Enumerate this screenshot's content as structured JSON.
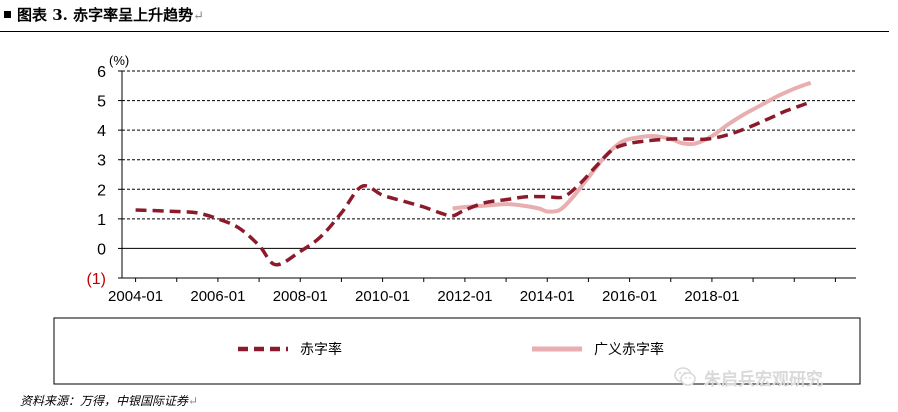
{
  "header": {
    "title": "图表 3. 赤字率呈上升趋势",
    "return_mark": "↵"
  },
  "footer": {
    "source": "资料来源：万得，中银国际证券",
    "return_mark": "↵",
    "watermark": "朱启兵宏观研究"
  },
  "icons": {
    "watermark_icon": "wechat-icon",
    "bullet": "square-bullet-icon"
  },
  "chart_data": {
    "type": "line",
    "unit_label": "(%)",
    "ylim": [
      -1,
      6
    ],
    "yticks": [
      6,
      5,
      4,
      3,
      2,
      1,
      0,
      -1
    ],
    "ytick_labels": [
      "6",
      "5",
      "4",
      "3",
      "2",
      "1",
      "0",
      "(1)"
    ],
    "negative_label_color": "#c00000",
    "xlim": [
      2003.67,
      2021.5
    ],
    "xticks": [
      2004,
      2006,
      2008,
      2010,
      2012,
      2014,
      2016,
      2018
    ],
    "xtick_labels": [
      "2004-01",
      "2006-01",
      "2008-01",
      "2010-01",
      "2012-01",
      "2014-01",
      "2016-01",
      "2018-01"
    ],
    "grid": "horizontal-dashed",
    "legend_position": "bottom",
    "series": [
      {
        "name": "赤字率",
        "color": "#8b1a2b",
        "style": "dashed",
        "points": [
          [
            2004.0,
            1.3
          ],
          [
            2005.0,
            1.25
          ],
          [
            2005.5,
            1.2
          ],
          [
            2006.0,
            1.0
          ],
          [
            2006.5,
            0.7
          ],
          [
            2007.0,
            0.1
          ],
          [
            2007.4,
            -0.55
          ],
          [
            2008.0,
            -0.1
          ],
          [
            2008.5,
            0.4
          ],
          [
            2009.0,
            1.2
          ],
          [
            2009.5,
            2.1
          ],
          [
            2010.0,
            1.8
          ],
          [
            2010.5,
            1.6
          ],
          [
            2011.0,
            1.4
          ],
          [
            2011.4,
            1.2
          ],
          [
            2011.7,
            1.1
          ],
          [
            2012.0,
            1.3
          ],
          [
            2012.5,
            1.55
          ],
          [
            2013.0,
            1.65
          ],
          [
            2013.5,
            1.75
          ],
          [
            2014.0,
            1.75
          ],
          [
            2014.4,
            1.75
          ],
          [
            2014.8,
            2.2
          ],
          [
            2015.2,
            2.8
          ],
          [
            2015.6,
            3.35
          ],
          [
            2016.0,
            3.55
          ],
          [
            2016.5,
            3.65
          ],
          [
            2017.0,
            3.7
          ],
          [
            2017.4,
            3.7
          ],
          [
            2017.9,
            3.7
          ],
          [
            2018.4,
            3.85
          ],
          [
            2018.9,
            4.1
          ],
          [
            2019.4,
            4.4
          ],
          [
            2019.8,
            4.65
          ],
          [
            2020.3,
            4.9
          ]
        ]
      },
      {
        "name": "广义赤字率",
        "color": "#e8aeb0",
        "style": "solid",
        "points": [
          [
            2011.7,
            1.35
          ],
          [
            2012.0,
            1.4
          ],
          [
            2012.5,
            1.45
          ],
          [
            2013.0,
            1.5
          ],
          [
            2013.4,
            1.45
          ],
          [
            2013.8,
            1.35
          ],
          [
            2014.0,
            1.25
          ],
          [
            2014.3,
            1.3
          ],
          [
            2014.6,
            1.7
          ],
          [
            2015.0,
            2.4
          ],
          [
            2015.4,
            3.1
          ],
          [
            2015.8,
            3.6
          ],
          [
            2016.2,
            3.75
          ],
          [
            2016.6,
            3.8
          ],
          [
            2017.0,
            3.7
          ],
          [
            2017.3,
            3.55
          ],
          [
            2017.6,
            3.55
          ],
          [
            2018.0,
            3.8
          ],
          [
            2018.4,
            4.2
          ],
          [
            2018.8,
            4.55
          ],
          [
            2019.2,
            4.85
          ],
          [
            2019.6,
            5.15
          ],
          [
            2020.0,
            5.4
          ],
          [
            2020.4,
            5.6
          ]
        ]
      }
    ]
  }
}
